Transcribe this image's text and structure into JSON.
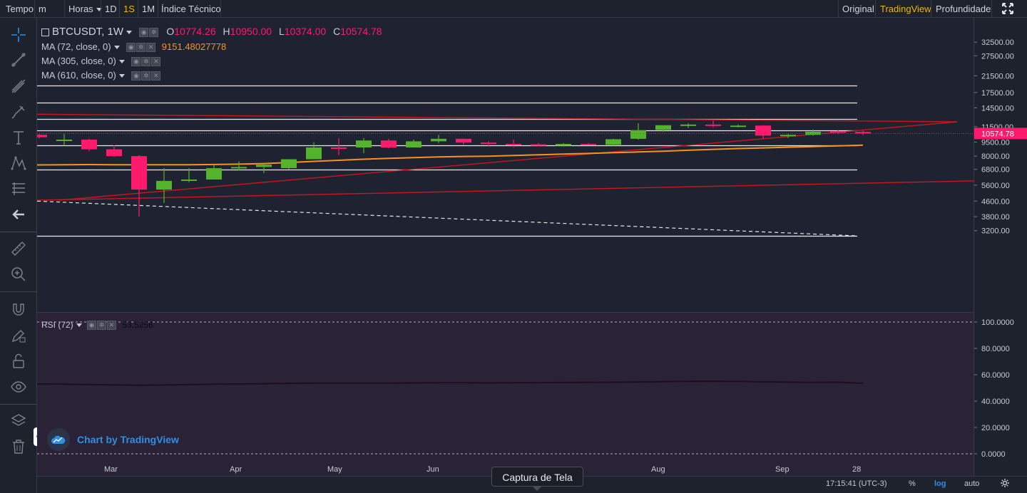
{
  "topbar": {
    "time_label": "Tempo",
    "interval_select": "m",
    "hours_label": "Horas",
    "intervals": [
      "1D",
      "1S",
      "1M"
    ],
    "active_interval": "1S",
    "indicators_label": "Índice Técnico",
    "view_modes": [
      "Original",
      "TradingView",
      "Profundidade"
    ],
    "active_view": "TradingView"
  },
  "legend": {
    "symbol": "BTCUSDT, 1W",
    "o_label": "O",
    "o_value": "10774.26",
    "h_label": "H",
    "h_value": "10950.00",
    "l_label": "L",
    "l_value": "10374.00",
    "c_label": "C",
    "c_value": "10574.78",
    "ma1_label": "MA (72, close, 0)",
    "ma1_value": "9151.48027778",
    "ma2_label": "MA (305, close, 0)",
    "ma3_label": "MA (610, close, 0)",
    "rsi_label": "RSI (72)",
    "rsi_value": "53.5256"
  },
  "price_axis": {
    "ticks": [
      "32500.00",
      "27500.00",
      "21500.00",
      "17500.00",
      "14500.00",
      "11500.00",
      "9500.00",
      "8000.00",
      "6800.00",
      "5600.00",
      "4600.00",
      "3800.00",
      "3200.00"
    ],
    "last_price": "10574.78"
  },
  "rsi_axis": {
    "ticks": [
      "100.0000",
      "80.0000",
      "60.0000",
      "40.0000",
      "20.0000",
      "0.0000"
    ]
  },
  "time_axis": {
    "labels": [
      "Mar",
      "Apr",
      "May",
      "Jun",
      "Aug",
      "Sep",
      "28"
    ]
  },
  "bottombar": {
    "clock": "17:15:41 (UTC-3)",
    "percent_label": "%",
    "log_label": "log",
    "auto_label": "auto"
  },
  "tooltip": "Captura de Tela",
  "watermark": "Chart by TradingView",
  "colors": {
    "up": "#53b32b",
    "down": "#ff1a6c",
    "ma": "#f7931a",
    "trend": "#c8171f",
    "accent": "#f5b400",
    "link": "#2f8ee5"
  },
  "chart_data": {
    "type": "candlestick",
    "title": "BTCUSDT, 1W",
    "scale": "log",
    "ylim": [
      2900,
      34000
    ],
    "candles": [
      {
        "o": 10400,
        "h": 10500,
        "l": 9950,
        "c": 10100
      },
      {
        "o": 9700,
        "h": 10500,
        "l": 9100,
        "c": 9800
      },
      {
        "o": 9800,
        "h": 9900,
        "l": 8500,
        "c": 8700
      },
      {
        "o": 8700,
        "h": 9150,
        "l": 7900,
        "c": 8000
      },
      {
        "o": 8000,
        "h": 8100,
        "l": 3800,
        "c": 5300
      },
      {
        "o": 5300,
        "h": 6900,
        "l": 4500,
        "c": 5900
      },
      {
        "o": 5900,
        "h": 6900,
        "l": 5800,
        "c": 6000
      },
      {
        "o": 6000,
        "h": 7200,
        "l": 6000,
        "c": 6900
      },
      {
        "o": 6900,
        "h": 7500,
        "l": 6700,
        "c": 7000
      },
      {
        "o": 7000,
        "h": 7300,
        "l": 6500,
        "c": 7200
      },
      {
        "o": 6900,
        "h": 7700,
        "l": 6800,
        "c": 7700
      },
      {
        "o": 7700,
        "h": 9500,
        "l": 7700,
        "c": 8900
      },
      {
        "o": 8900,
        "h": 10000,
        "l": 8100,
        "c": 8800
      },
      {
        "o": 8900,
        "h": 10000,
        "l": 8300,
        "c": 9700
      },
      {
        "o": 9700,
        "h": 9900,
        "l": 8800,
        "c": 8900
      },
      {
        "o": 8900,
        "h": 9800,
        "l": 8900,
        "c": 9600
      },
      {
        "o": 9600,
        "h": 10400,
        "l": 9400,
        "c": 9900
      },
      {
        "o": 9900,
        "h": 9950,
        "l": 9200,
        "c": 9450
      },
      {
        "o": 9450,
        "h": 9600,
        "l": 9000,
        "c": 9300
      },
      {
        "o": 9300,
        "h": 9800,
        "l": 8900,
        "c": 9200
      },
      {
        "o": 9250,
        "h": 9400,
        "l": 9050,
        "c": 9150
      },
      {
        "o": 9100,
        "h": 9400,
        "l": 9000,
        "c": 9300
      },
      {
        "o": 9300,
        "h": 9400,
        "l": 9150,
        "c": 9250
      },
      {
        "o": 9200,
        "h": 9900,
        "l": 9100,
        "c": 9850
      },
      {
        "o": 9900,
        "h": 12000,
        "l": 9800,
        "c": 11000
      },
      {
        "o": 11050,
        "h": 11700,
        "l": 10800,
        "c": 11700
      },
      {
        "o": 11700,
        "h": 12000,
        "l": 11300,
        "c": 11800
      },
      {
        "o": 11800,
        "h": 12400,
        "l": 11400,
        "c": 11600
      },
      {
        "o": 11600,
        "h": 11800,
        "l": 11400,
        "c": 11650
      },
      {
        "o": 11650,
        "h": 11700,
        "l": 9900,
        "c": 10300
      },
      {
        "o": 10300,
        "h": 10500,
        "l": 10000,
        "c": 10400
      },
      {
        "o": 10400,
        "h": 11100,
        "l": 10300,
        "c": 10800
      },
      {
        "o": 10850,
        "h": 11000,
        "l": 10500,
        "c": 10750
      },
      {
        "o": 10774.26,
        "h": 10950,
        "l": 10374,
        "c": 10574.78
      }
    ],
    "ma72": [
      7180,
      7200,
      7210,
      7200,
      7190,
      7200,
      7200,
      7220,
      7250,
      7300,
      7400,
      7500,
      7600,
      7700,
      7780,
      7850,
      7920,
      7970,
      8000,
      8070,
      8130,
      8200,
      8270,
      8350,
      8420,
      8500,
      8600,
      8700,
      8780,
      8850,
      8930,
      9000,
      9080,
      9151.48
    ],
    "horizontal_levels": [
      19000,
      15500,
      12600,
      11000,
      9100,
      6800,
      3000
    ],
    "rsi_values": [
      53,
      52.8,
      52.5,
      52.3,
      52,
      52.2,
      52.5,
      52.8,
      53,
      53.2,
      53.5,
      53.6,
      53.7,
      53.6,
      53.6,
      53.8,
      53.9,
      53.9,
      53.8,
      53.9,
      54,
      54.1,
      54.2,
      54.3,
      54.5,
      54.8,
      55,
      55.1,
      55,
      54.6,
      54.4,
      54.2,
      54.3,
      53.5256
    ],
    "rsi_ylim": [
      0,
      100
    ]
  }
}
